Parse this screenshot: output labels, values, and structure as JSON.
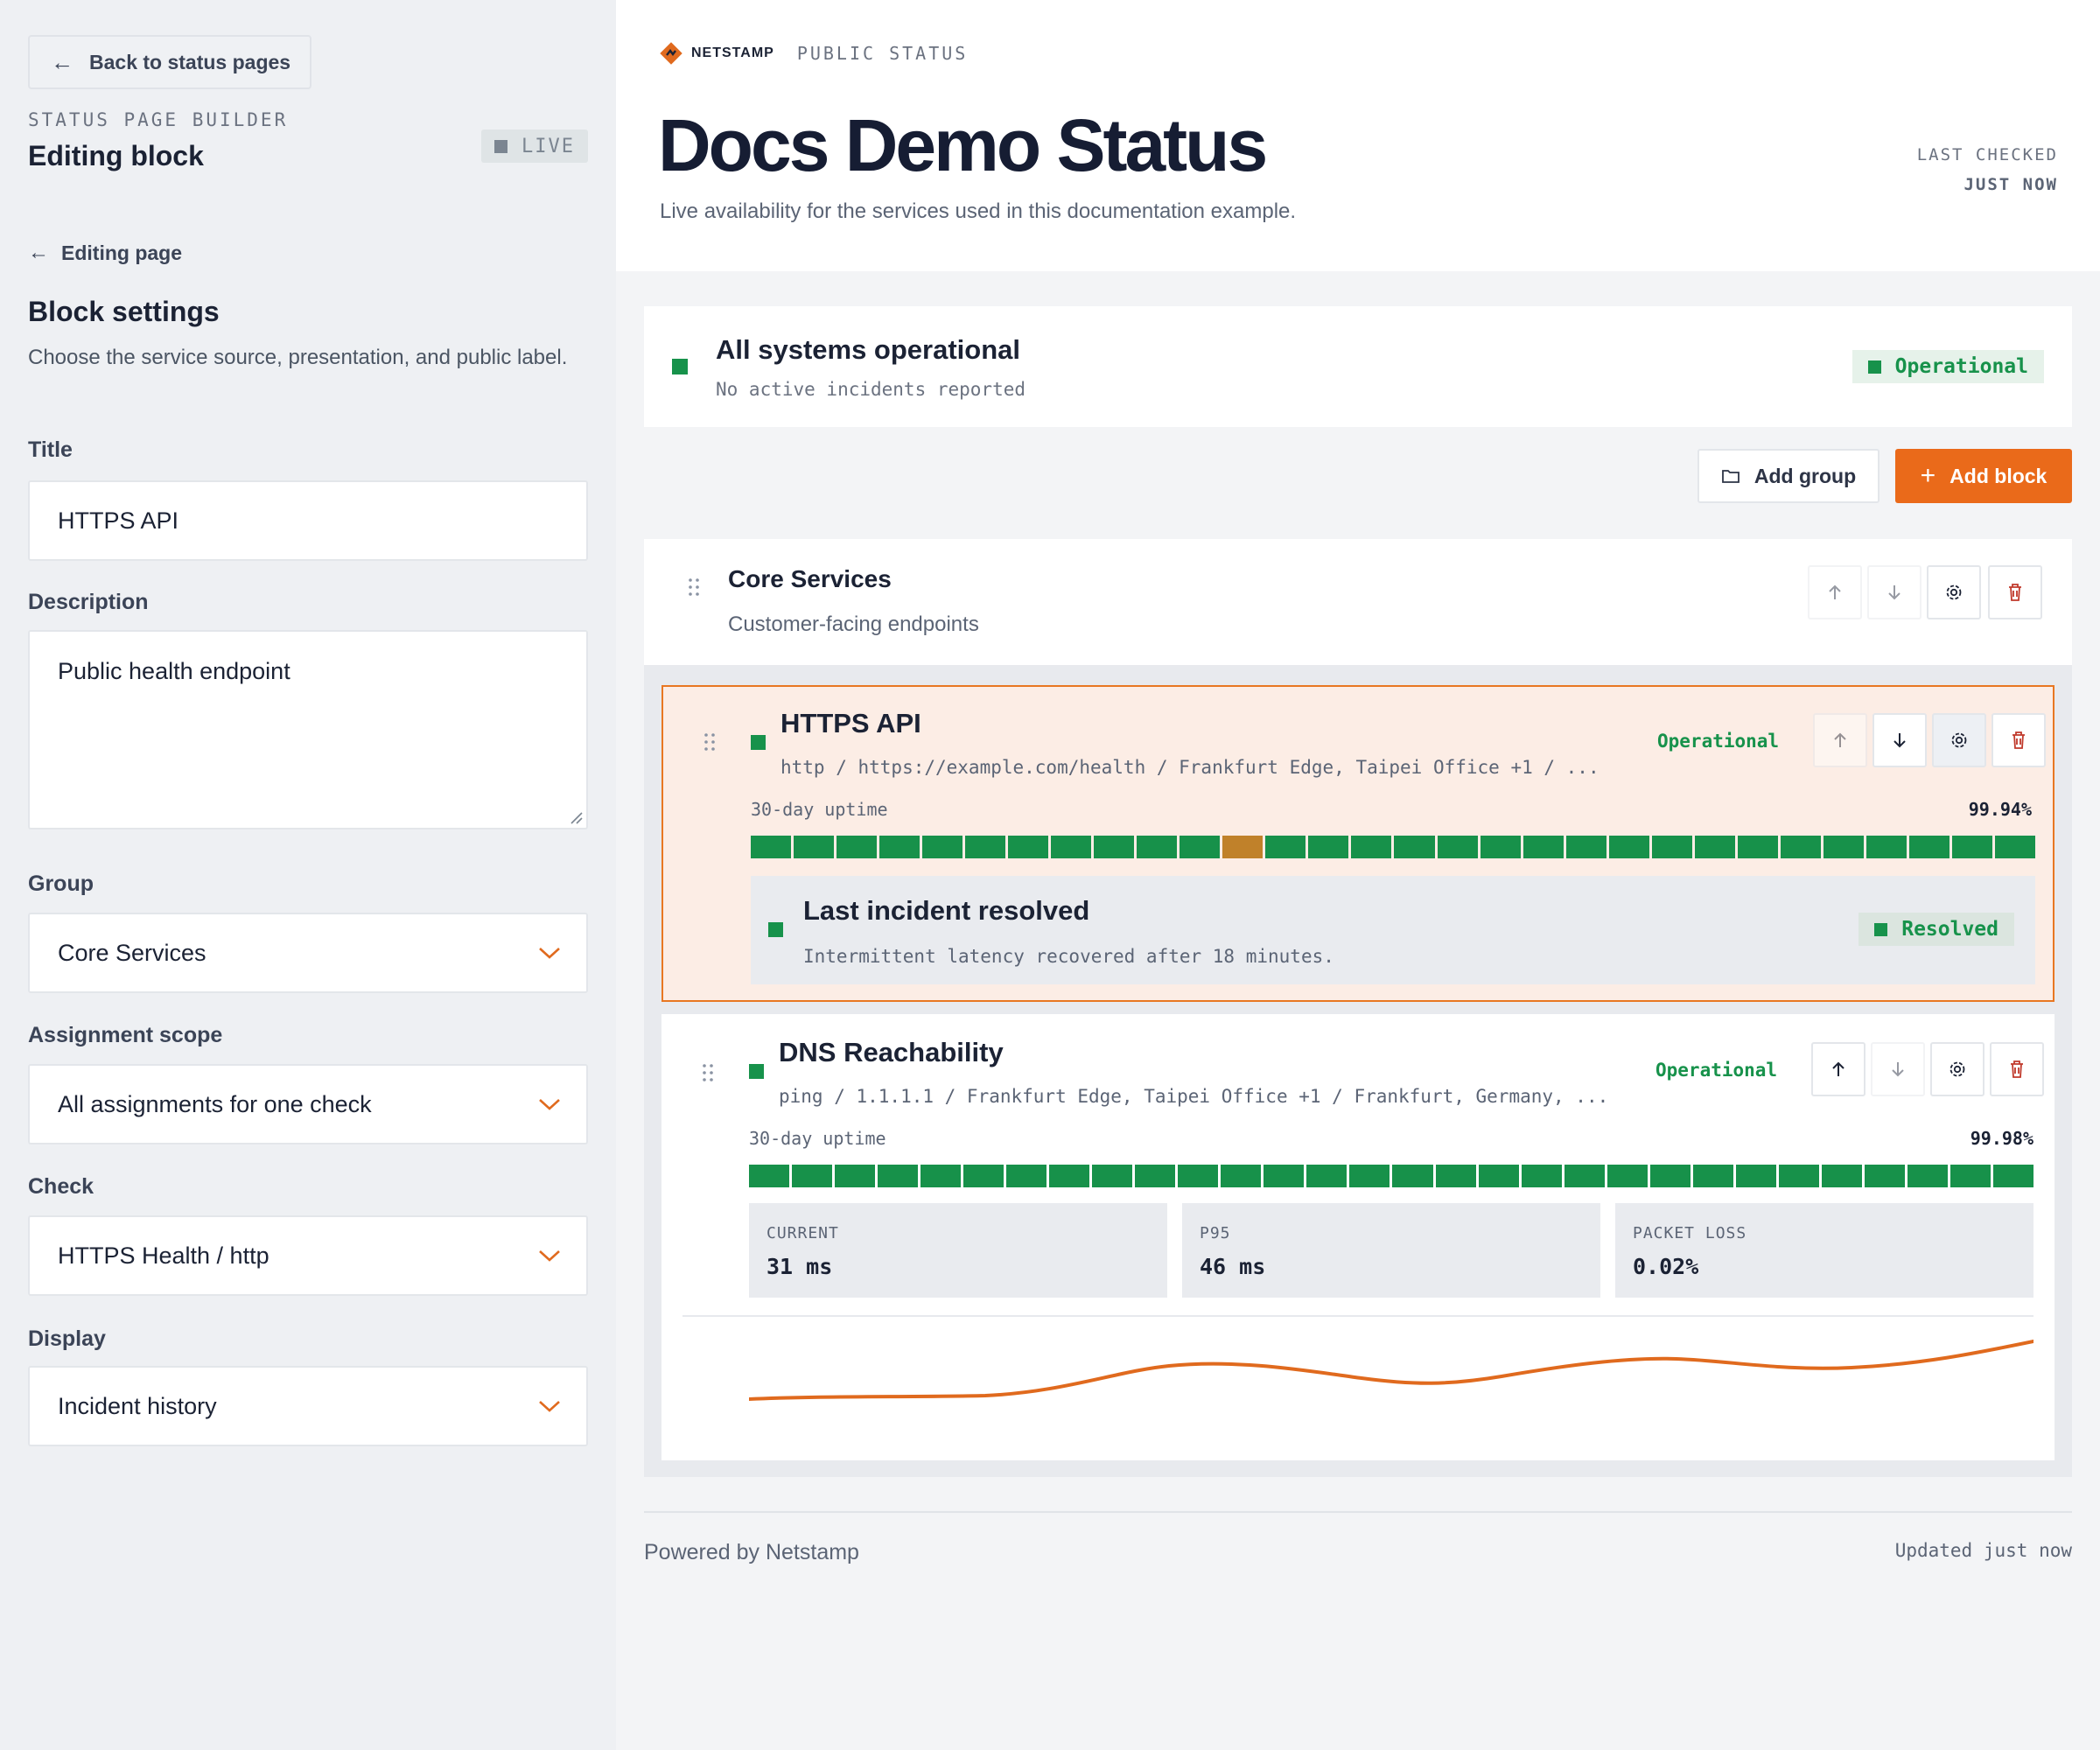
{
  "sidebar": {
    "back_label": "Back to status pages",
    "eyebrow": "STATUS PAGE BUILDER",
    "title": "Editing block",
    "live_badge": "LIVE",
    "editing_page_link": "Editing page",
    "block_settings_title": "Block settings",
    "block_settings_desc": "Choose the service source, presentation, and public label.",
    "fields": {
      "title_label": "Title",
      "title_value": "HTTPS API",
      "description_label": "Description",
      "description_value": "Public health endpoint",
      "group_label": "Group",
      "group_value": "Core Services",
      "scope_label": "Assignment scope",
      "scope_value": "All assignments for one check",
      "check_label": "Check",
      "check_value": "HTTPS Health / http",
      "display_label": "Display",
      "display_value": "Incident history"
    }
  },
  "header": {
    "brand": "NETSTAMP",
    "brand_sub": "PUBLIC STATUS",
    "title": "Docs Demo Status",
    "description": "Live availability for the services used in this documentation example.",
    "last_checked_label": "LAST CHECKED",
    "last_checked_value": "JUST NOW"
  },
  "overall": {
    "title": "All systems operational",
    "subtitle": "No active incidents reported",
    "badge": "Operational"
  },
  "actions": {
    "add_group": "Add group",
    "add_block": "Add block"
  },
  "group": {
    "title": "Core Services",
    "subtitle": "Customer-facing endpoints"
  },
  "services": [
    {
      "name": "HTTPS API",
      "meta": "http / https://example.com/health / Frankfurt Edge, Taipei Office +1 / ...",
      "status": "Operational",
      "uptime_label": "30-day uptime",
      "uptime_pct": "99.94%",
      "day_states": [
        "ok",
        "ok",
        "ok",
        "ok",
        "ok",
        "ok",
        "ok",
        "ok",
        "ok",
        "ok",
        "ok",
        "warn",
        "ok",
        "ok",
        "ok",
        "ok",
        "ok",
        "ok",
        "ok",
        "ok",
        "ok",
        "ok",
        "ok",
        "ok",
        "ok",
        "ok",
        "ok",
        "ok",
        "ok",
        "ok"
      ],
      "incident": {
        "title": "Last incident resolved",
        "subtitle": "Intermittent latency recovered after 18 minutes.",
        "badge": "Resolved"
      }
    },
    {
      "name": "DNS Reachability",
      "meta": "ping / 1.1.1.1 / Frankfurt Edge, Taipei Office +1 / Frankfurt, Germany, ...",
      "status": "Operational",
      "uptime_label": "30-day uptime",
      "uptime_pct": "99.98%",
      "day_states": [
        "ok",
        "ok",
        "ok",
        "ok",
        "ok",
        "ok",
        "ok",
        "ok",
        "ok",
        "ok",
        "ok",
        "ok",
        "ok",
        "ok",
        "ok",
        "ok",
        "ok",
        "ok",
        "ok",
        "ok",
        "ok",
        "ok",
        "ok",
        "ok",
        "ok",
        "ok",
        "ok",
        "ok",
        "ok",
        "ok"
      ],
      "metrics": [
        {
          "label": "CURRENT",
          "value": "31 ms"
        },
        {
          "label": "P95",
          "value": "46 ms"
        },
        {
          "label": "PACKET LOSS",
          "value": "0.02%"
        }
      ]
    }
  ],
  "footer": {
    "powered": "Powered by Netstamp",
    "updated": "Updated just now"
  },
  "colors": {
    "accent": "#ea6a1a",
    "operational": "#17924b",
    "warning": "#c0812a",
    "danger": "#c0392b"
  }
}
